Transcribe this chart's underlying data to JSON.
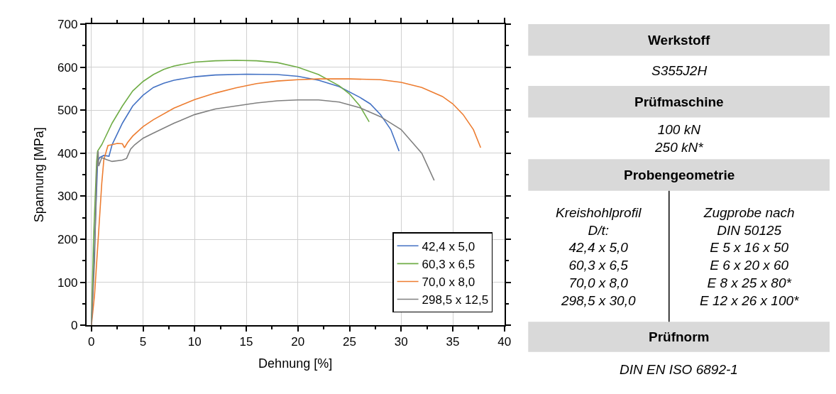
{
  "chart_data": [
    {
      "type": "line",
      "xlabel": "Dehnung [%]",
      "ylabel": "Spannung [MPa]",
      "xlim": [
        -0.5,
        40
      ],
      "ylim": [
        0,
        700
      ],
      "xticks": [
        0,
        5,
        10,
        15,
        20,
        25,
        30,
        35,
        40
      ],
      "yticks": [
        0,
        100,
        200,
        300,
        400,
        500,
        600,
        700
      ],
      "grid": true,
      "legend": "bottom right",
      "line_style": "solid",
      "marker": "none",
      "series": [
        {
          "name": "42,4 x 5,0",
          "color": "#4472c4",
          "x": [
            0,
            0.2,
            0.4,
            0.6,
            0.8,
            1.2,
            1.7,
            2,
            3,
            4,
            5,
            6,
            7,
            8,
            10,
            12,
            15,
            18,
            20,
            22,
            24,
            26,
            27,
            28,
            29,
            29.8
          ],
          "values": [
            0,
            120,
            250,
            380,
            390,
            395,
            393,
            420,
            470,
            510,
            535,
            553,
            563,
            570,
            578,
            582,
            584,
            583,
            579,
            570,
            555,
            530,
            515,
            490,
            455,
            405
          ]
        },
        {
          "name": "60,3 x 6,5",
          "color": "#70ad47",
          "x": [
            0,
            0.2,
            0.5,
            0.6,
            1,
            1.2,
            2,
            3,
            4,
            5,
            6,
            7,
            8,
            10,
            12,
            14,
            16,
            18,
            20,
            22,
            24,
            25,
            26,
            26.9
          ],
          "values": [
            0,
            200,
            380,
            405,
            420,
            430,
            470,
            510,
            545,
            567,
            583,
            595,
            603,
            612,
            615,
            616,
            615,
            611,
            600,
            583,
            557,
            538,
            510,
            473
          ]
        },
        {
          "name": "70,0 x 8,0",
          "color": "#ed7d31",
          "x": [
            0,
            0.3,
            0.6,
            1,
            1.2,
            1.6,
            2,
            2.5,
            3,
            3.2,
            3.5,
            4,
            5,
            6,
            8,
            10,
            12,
            14,
            16,
            18,
            20,
            22,
            25,
            28,
            30,
            32,
            34,
            35,
            36,
            37,
            37.7
          ],
          "values": [
            0,
            70,
            180,
            330,
            385,
            418,
            420,
            423,
            422,
            413,
            425,
            440,
            462,
            478,
            505,
            525,
            540,
            552,
            562,
            568,
            571,
            573,
            573,
            571,
            565,
            553,
            532,
            515,
            490,
            455,
            413
          ]
        },
        {
          "name": "298,5 x 12,5",
          "color": "#808080",
          "x": [
            0,
            0.3,
            0.5,
            0.65,
            0.7,
            1,
            1.5,
            2,
            3,
            3.4,
            3.8,
            4.2,
            5,
            6,
            8,
            10,
            12,
            14,
            16,
            18,
            20,
            22,
            24,
            26,
            28,
            30,
            32,
            33.2
          ],
          "values": [
            0,
            150,
            350,
            405,
            370,
            390,
            385,
            381,
            384,
            388,
            410,
            420,
            435,
            447,
            470,
            490,
            503,
            510,
            517,
            522,
            524,
            524,
            519,
            506,
            485,
            455,
            400,
            337
          ]
        }
      ]
    },
    {
      "type": "other",
      "annotations": [
        "Werkstoff",
        "S355J2H",
        "Prüfmaschine",
        "100 kN\n250 kN*",
        "Probengeometrie",
        "Kreishohlprofil\nD/t:\n42,4 x 5,0\n60,3 x 6,5\n70,0 x 8,0\n298,5 x 30,0",
        "Zugprobe nach\nDIN 50125\nE 5 x 16 x 50\nE 6 x 20 x 60\nE 8 x 25 x 80*\nE 12 x 26 x 100*",
        "Prüfnorm",
        "DIN EN ISO 6892-1"
      ]
    }
  ]
}
